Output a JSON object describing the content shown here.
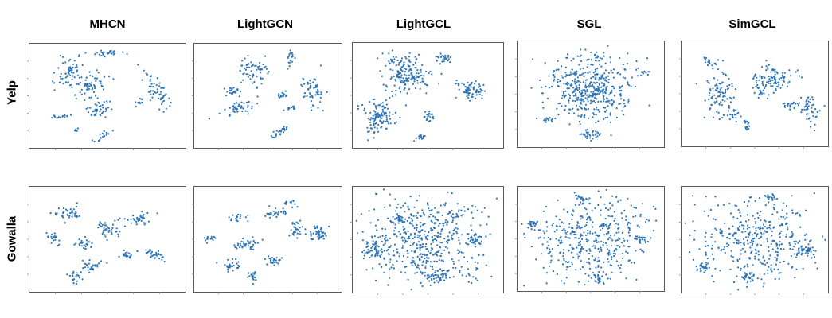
{
  "columns": [
    "MHCN",
    "LightGCN",
    "LightGCL",
    "SGL",
    "SimGCL"
  ],
  "highlighted_column": "LightGCL",
  "rows": [
    "Yelp",
    "Gowalla"
  ],
  "colors": {
    "point": "#2E75B6",
    "frame": "#595959",
    "tick": "#888888"
  },
  "chart_data": [
    {
      "type": "scatter",
      "title": "MHCN",
      "dataset": "Yelp"
    },
    {
      "type": "scatter",
      "title": "LightGCN",
      "dataset": "Yelp"
    },
    {
      "type": "scatter",
      "title": "LightGCL",
      "dataset": "Yelp"
    },
    {
      "type": "scatter",
      "title": "SGL",
      "dataset": "Yelp"
    },
    {
      "type": "scatter",
      "title": "SimGCL",
      "dataset": "Yelp"
    },
    {
      "type": "scatter",
      "title": "MHCN",
      "dataset": "Gowalla"
    },
    {
      "type": "scatter",
      "title": "LightGCN",
      "dataset": "Gowalla"
    },
    {
      "type": "scatter",
      "title": "LightGCL",
      "dataset": "Gowalla"
    },
    {
      "type": "scatter",
      "title": "SGL",
      "dataset": "Gowalla"
    },
    {
      "type": "scatter",
      "title": "SimGCL",
      "dataset": "Gowalla"
    }
  ]
}
